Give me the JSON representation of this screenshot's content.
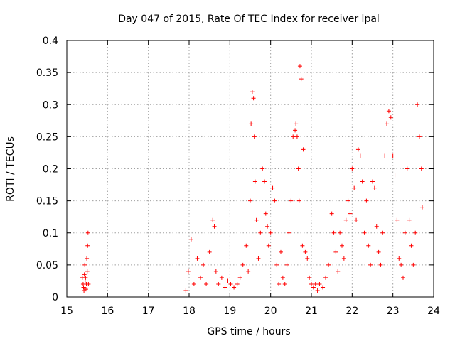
{
  "chart_data": {
    "type": "scatter",
    "title": "Day 047 of 2015, Rate Of TEC Index for receiver lpal",
    "xlabel": "GPS time / hours",
    "ylabel": "ROTI / TECUs",
    "xlim": [
      15,
      24
    ],
    "ylim": [
      0,
      0.4
    ],
    "xticks": [
      15,
      16,
      17,
      18,
      19,
      20,
      21,
      22,
      23,
      24
    ],
    "yticks": [
      0,
      0.05,
      0.1,
      0.15,
      0.2,
      0.25,
      0.3,
      0.35,
      0.4
    ],
    "ytick_labels": [
      "0",
      "0.05",
      "0.1",
      "0.15",
      "0.2",
      "0.25",
      "0.3",
      "0.35",
      "0.4"
    ],
    "grid": true,
    "marker": "plus",
    "color": "#ff0000",
    "series": [
      {
        "x": [
          15.38,
          15.4,
          15.42,
          15.44,
          15.46,
          15.48,
          15.5,
          15.52,
          15.41,
          15.45,
          15.49,
          15.43,
          15.47,
          15.51,
          15.53,
          17.92,
          17.98,
          18.05,
          18.12,
          18.2,
          18.28,
          18.35,
          18.42,
          18.5,
          18.58,
          18.62,
          18.66,
          18.72,
          18.8,
          18.88,
          18.95,
          19.02,
          19.1,
          19.18,
          19.25,
          19.32,
          19.4,
          19.45,
          19.5,
          19.52,
          19.55,
          19.58,
          19.6,
          19.62,
          19.65,
          19.7,
          19.75,
          19.8,
          19.85,
          19.88,
          19.92,
          19.95,
          20.0,
          20.05,
          20.1,
          20.15,
          20.2,
          20.25,
          20.3,
          20.35,
          20.4,
          20.45,
          20.5,
          20.55,
          20.6,
          20.62,
          20.65,
          20.68,
          20.7,
          20.72,
          20.75,
          20.78,
          20.8,
          20.85,
          20.9,
          20.95,
          21.0,
          21.05,
          21.1,
          21.15,
          21.2,
          21.28,
          21.35,
          21.42,
          21.5,
          21.55,
          21.6,
          21.65,
          21.7,
          21.75,
          21.8,
          21.85,
          21.9,
          21.95,
          22.0,
          22.05,
          22.1,
          22.15,
          22.2,
          22.25,
          22.3,
          22.35,
          22.4,
          22.45,
          22.5,
          22.55,
          22.6,
          22.65,
          22.7,
          22.75,
          22.8,
          22.85,
          22.9,
          22.95,
          23.0,
          23.05,
          23.1,
          23.15,
          23.2,
          23.25,
          23.3,
          23.35,
          23.4,
          23.45,
          23.5,
          23.55,
          23.6,
          23.65,
          23.7,
          23.72
        ],
        "y": [
          0.03,
          0.02,
          0.01,
          0.05,
          0.03,
          0.02,
          0.04,
          0.1,
          0.015,
          0.025,
          0.06,
          0.035,
          0.012,
          0.08,
          0.02,
          0.01,
          0.04,
          0.09,
          0.02,
          0.06,
          0.03,
          0.05,
          0.02,
          0.07,
          0.12,
          0.11,
          0.04,
          0.02,
          0.03,
          0.015,
          0.025,
          0.02,
          0.015,
          0.02,
          0.03,
          0.05,
          0.08,
          0.04,
          0.15,
          0.27,
          0.32,
          0.31,
          0.25,
          0.18,
          0.12,
          0.06,
          0.1,
          0.2,
          0.18,
          0.13,
          0.11,
          0.08,
          0.1,
          0.17,
          0.15,
          0.05,
          0.02,
          0.07,
          0.03,
          0.02,
          0.05,
          0.1,
          0.15,
          0.25,
          0.26,
          0.27,
          0.25,
          0.2,
          0.15,
          0.36,
          0.34,
          0.08,
          0.23,
          0.07,
          0.06,
          0.03,
          0.02,
          0.015,
          0.02,
          0.01,
          0.02,
          0.015,
          0.03,
          0.05,
          0.13,
          0.1,
          0.07,
          0.04,
          0.1,
          0.08,
          0.06,
          0.12,
          0.15,
          0.13,
          0.2,
          0.17,
          0.12,
          0.23,
          0.22,
          0.18,
          0.1,
          0.15,
          0.08,
          0.05,
          0.18,
          0.17,
          0.11,
          0.07,
          0.05,
          0.1,
          0.22,
          0.27,
          0.29,
          0.28,
          0.22,
          0.19,
          0.12,
          0.06,
          0.05,
          0.03,
          0.1,
          0.2,
          0.12,
          0.08,
          0.05,
          0.1,
          0.3,
          0.25,
          0.2,
          0.14
        ]
      }
    ]
  }
}
